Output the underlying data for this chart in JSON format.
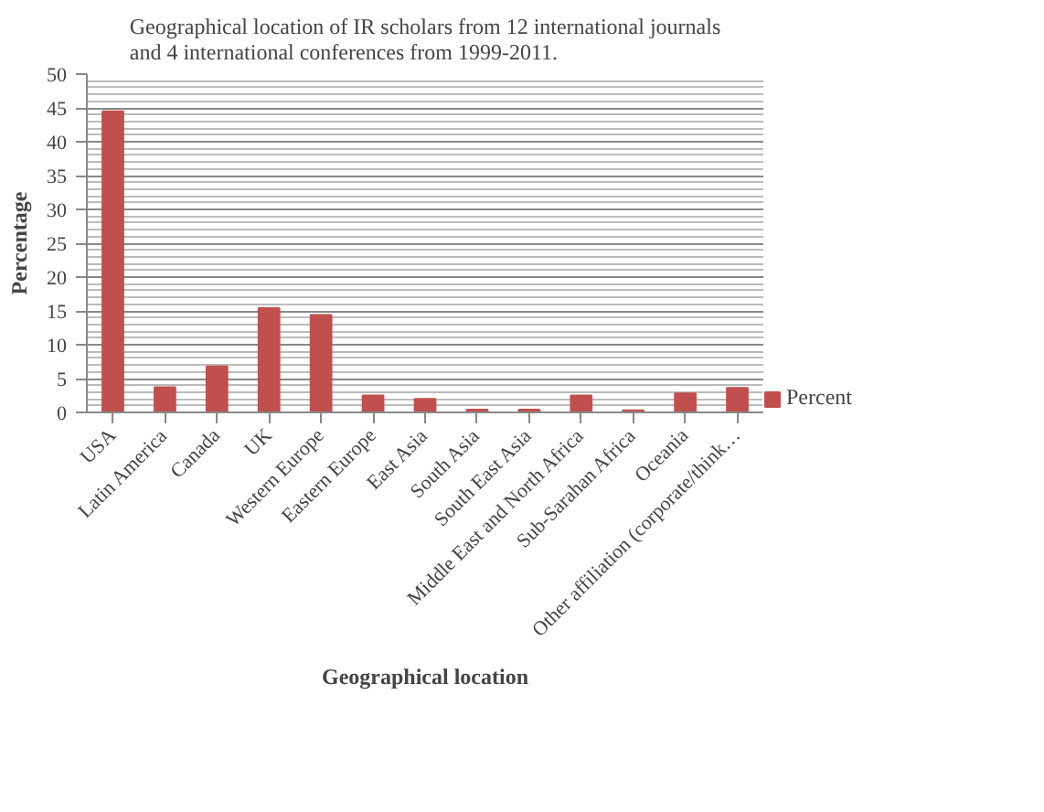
{
  "chart_data": {
    "type": "bar",
    "title": "Geographical location of IR scholars from 12 international journals\nand 4 international conferences from 1999-2011.",
    "xlabel": "Geographical location",
    "ylabel": "Percentage",
    "categories": [
      "USA",
      "Latin America",
      "Canada",
      "UK",
      "Western Europe",
      "Eastern Europe",
      "East Asia",
      "South Asia",
      "South East Asia",
      "Middle East and North Africa",
      "Sub-Sarahan Africa",
      "Oceania",
      "Other affiliation (corporate/think…"
    ],
    "series": [
      {
        "name": "Percent",
        "color": "#c0504d",
        "values": [
          44.5,
          3.7,
          6.8,
          15.4,
          14.4,
          2.5,
          2.0,
          0.4,
          0.4,
          2.5,
          0.3,
          2.8,
          3.6
        ]
      }
    ],
    "ylim": [
      0,
      50
    ],
    "yticks": [
      0,
      5,
      10,
      15,
      20,
      25,
      30,
      35,
      40,
      45,
      50
    ],
    "grid": "y",
    "legend": "right"
  }
}
